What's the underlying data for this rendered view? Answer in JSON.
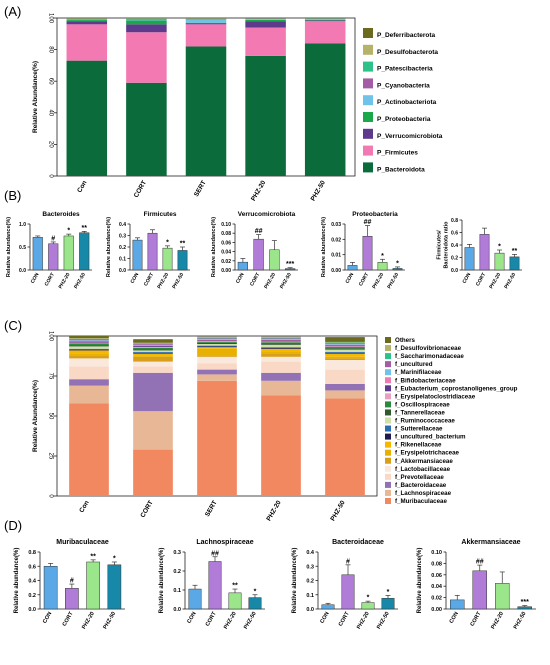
{
  "panel_labels": [
    "(A)",
    "(B)",
    "(C)",
    "(D)"
  ],
  "chart_data": [
    {
      "id": "A",
      "type": "bar",
      "stacked": true,
      "categories": [
        "Con",
        "CORT",
        "SERT",
        "PHZ-20",
        "PHZ-50"
      ],
      "ylabel": "Relative Abundance(%)",
      "xlabel": "",
      "ylim": [
        0,
        100
      ],
      "yticks": [
        "0",
        "20",
        "40",
        "60",
        "80",
        "100"
      ],
      "legend_position": "right",
      "series": [
        {
          "name": "P_Bacteroidota",
          "color": "#0b6b3a",
          "values": [
            73,
            59,
            82,
            76,
            84
          ]
        },
        {
          "name": "P_Firmicutes",
          "color": "#f279b2",
          "values": [
            23,
            32,
            14,
            18,
            14
          ]
        },
        {
          "name": "P_Verrucomicrobiota",
          "color": "#5e3a8c",
          "values": [
            2,
            5,
            0.5,
            4,
            0.5
          ]
        },
        {
          "name": "P_Proteobacteria",
          "color": "#1aa84a",
          "values": [
            0.7,
            2.5,
            0.5,
            0.8,
            0.4
          ]
        },
        {
          "name": "P_Actinobacteriota",
          "color": "#6fc3e8",
          "values": [
            0.3,
            0.5,
            2,
            0.5,
            0.4
          ]
        },
        {
          "name": "P_Cyanobacteria",
          "color": "#a35ca5",
          "values": [
            0.3,
            0.4,
            0.3,
            0.3,
            0.2
          ]
        },
        {
          "name": "P_Patescibacteria",
          "color": "#2ec28a",
          "values": [
            0.2,
            0.2,
            0.2,
            0.2,
            0.2
          ]
        },
        {
          "name": "P_Desulfobacterota",
          "color": "#b5b36a",
          "values": [
            0.2,
            0.2,
            0.2,
            0.1,
            0.1
          ]
        },
        {
          "name": "P_Deferribacterota",
          "color": "#6b6b1f",
          "values": [
            0.1,
            0.1,
            0.1,
            0.1,
            0.1
          ]
        }
      ]
    },
    {
      "id": "B1",
      "type": "bar",
      "title": "Bacteroides",
      "categories": [
        "CON",
        "CORT",
        "PHZ-20",
        "PHZ-50"
      ],
      "values": [
        0.71,
        0.57,
        0.74,
        0.81
      ],
      "errors": [
        0.03,
        0.04,
        0.04,
        0.03
      ],
      "annotations": [
        "",
        "#",
        "*",
        "**"
      ],
      "ylabel": "Relative abundance(%)",
      "ylim": [
        0,
        1.0
      ],
      "yticks": [
        "0.0",
        "0.5",
        "1.0"
      ]
    },
    {
      "id": "B2",
      "type": "bar",
      "title": "Firmicutes",
      "categories": [
        "CON",
        "CORT",
        "PHZ-20",
        "PHZ-50"
      ],
      "values": [
        0.26,
        0.32,
        0.19,
        0.17
      ],
      "errors": [
        0.02,
        0.03,
        0.02,
        0.03
      ],
      "annotations": [
        "",
        "",
        "*",
        "**"
      ],
      "ylabel": "Relative abundance(%)",
      "ylim": [
        0,
        0.4
      ],
      "yticks": [
        "0.0",
        "0.1",
        "0.2",
        "0.3",
        "0.4"
      ]
    },
    {
      "id": "B3",
      "type": "bar",
      "title": "Verrucomicrobiota",
      "categories": [
        "CON",
        "CORT",
        "PHZ-20",
        "PHZ-50"
      ],
      "values": [
        0.017,
        0.067,
        0.044,
        0.003
      ],
      "errors": [
        0.008,
        0.01,
        0.02,
        0.002
      ],
      "annotations": [
        "",
        "##",
        "",
        "***"
      ],
      "ylabel": "Relative abundance(%)",
      "ylim": [
        0,
        0.1
      ],
      "yticks": [
        "0.00",
        "0.02",
        "0.04",
        "0.06",
        "0.08",
        "0.10"
      ]
    },
    {
      "id": "B4",
      "type": "bar",
      "title": "Proteobacteria",
      "categories": [
        "CON",
        "CORT",
        "PHZ-20",
        "PHZ-50"
      ],
      "values": [
        0.003,
        0.022,
        0.005,
        0.001
      ],
      "errors": [
        0.002,
        0.007,
        0.002,
        0.001
      ],
      "annotations": [
        "",
        "##",
        "*",
        "*"
      ],
      "ylabel": "Relative abundance(%)",
      "ylim": [
        0,
        0.03
      ],
      "yticks": [
        "0.00",
        "0.01",
        "0.02",
        "0.03"
      ]
    },
    {
      "id": "B5",
      "type": "bar",
      "title": "",
      "categories": [
        "CON",
        "CORT",
        "PHZ-20",
        "PHZ-50"
      ],
      "values": [
        0.36,
        0.57,
        0.27,
        0.21
      ],
      "errors": [
        0.05,
        0.1,
        0.05,
        0.04
      ],
      "annotations": [
        "",
        "",
        "*",
        "**"
      ],
      "ylabel": "Firmicutes/ Bacteroidota ratio",
      "ylim": [
        0,
        0.8
      ],
      "yticks": [
        "0.0",
        "0.2",
        "0.4",
        "0.6",
        "0.8"
      ]
    },
    {
      "id": "C",
      "type": "bar",
      "stacked": true,
      "categories": [
        "Con",
        "CORT",
        "SERT",
        "PHZ-20",
        "PHZ-50"
      ],
      "ylabel": "Relative Abundance(%)",
      "ylim": [
        0,
        100
      ],
      "yticks": [
        "0",
        "25",
        "50",
        "75",
        "100"
      ],
      "legend_position": "right",
      "series": [
        {
          "name": "f_Muribaculaceae",
          "color": "#f28860",
          "values": [
            58,
            29,
            72,
            63,
            61
          ]
        },
        {
          "name": "f_Lachnospiraceae",
          "color": "#e8b896",
          "values": [
            11,
            24,
            4,
            9,
            5
          ]
        },
        {
          "name": "f_Bacteroidaceae",
          "color": "#9271b5",
          "values": [
            4,
            24,
            3,
            5,
            4
          ]
        },
        {
          "name": "f_Prevotellaceae",
          "color": "#f9d9c6",
          "values": [
            8,
            4,
            4,
            7,
            9
          ]
        },
        {
          "name": "f_Lactobacillaceae",
          "color": "#fbe8dc",
          "values": [
            5,
            3,
            4,
            3,
            6
          ]
        },
        {
          "name": "f_Akkermansiaceae",
          "color": "#d8a01a",
          "values": [
            2,
            3,
            1,
            2,
            1
          ]
        },
        {
          "name": "f_Erysipelotrichaceae",
          "color": "#e8b000",
          "values": [
            1,
            1,
            4,
            1,
            1
          ]
        },
        {
          "name": "f_Rikenellaceae",
          "color": "#f5b800",
          "values": [
            2,
            1,
            1,
            2,
            2
          ]
        },
        {
          "name": "f_uncultured_bacterium",
          "color": "#1d1a4f",
          "values": [
            0.5,
            0.5,
            0.5,
            0.5,
            0.5
          ]
        },
        {
          "name": "f_Sutterellaceae",
          "color": "#2a6fb5",
          "values": [
            0.5,
            0.5,
            0.5,
            0.5,
            0.5
          ]
        },
        {
          "name": "f_Ruminococcaceae",
          "color": "#cfe0a8",
          "values": [
            1.5,
            1,
            1,
            1.5,
            1.5
          ]
        },
        {
          "name": "f_Tannerellaceae",
          "color": "#2e5a2e",
          "values": [
            0.8,
            0.8,
            0.8,
            0.8,
            0.8
          ]
        },
        {
          "name": "f_Oscillospiraceae",
          "color": "#2b8a3e",
          "values": [
            1,
            0.8,
            0.6,
            0.8,
            0.8
          ]
        },
        {
          "name": "f_Erysipelatoclostridiaceae",
          "color": "#e8a0c0",
          "values": [
            0.6,
            0.5,
            0.4,
            0.5,
            0.5
          ]
        },
        {
          "name": "f_Eubacterium_coprostanoligenes_group",
          "color": "#5e3a8c",
          "values": [
            0.6,
            0.6,
            0.4,
            0.6,
            0.6
          ]
        },
        {
          "name": "f_Bifidobacteriaceae",
          "color": "#f279b2",
          "values": [
            0.4,
            0.4,
            0.4,
            0.4,
            0.4
          ]
        },
        {
          "name": "f_Marinifilaceae",
          "color": "#6fc3e8",
          "values": [
            0.4,
            0.4,
            0.4,
            0.4,
            0.4
          ]
        },
        {
          "name": "f_uncultured",
          "color": "#a35ca5",
          "values": [
            0.5,
            0.5,
            0.5,
            0.5,
            0.5
          ]
        },
        {
          "name": "f_Saccharimonadaceae",
          "color": "#2ec28a",
          "values": [
            0.4,
            0.4,
            0.4,
            0.4,
            0.4
          ]
        },
        {
          "name": "f_Desulfovibrionaceae",
          "color": "#b5b36a",
          "values": [
            0.4,
            0.4,
            0.4,
            0.4,
            0.4
          ]
        },
        {
          "name": "Others",
          "color": "#6b6b1f",
          "values": [
            1.4,
            2.2,
            0.2,
            0.2,
            3.0
          ]
        }
      ]
    },
    {
      "id": "D1",
      "type": "bar",
      "title": "Muribaculaceae",
      "categories": [
        "CON",
        "CORT",
        "PHZ-20",
        "PHZ-50"
      ],
      "values": [
        0.6,
        0.29,
        0.66,
        0.62
      ],
      "errors": [
        0.04,
        0.06,
        0.03,
        0.04
      ],
      "annotations": [
        "",
        "#",
        "**",
        "*"
      ],
      "ylabel": "Relative abundance(%)",
      "ylim": [
        0,
        0.8
      ],
      "yticks": [
        "0.0",
        "0.2",
        "0.4",
        "0.6",
        "0.8"
      ]
    },
    {
      "id": "D2",
      "type": "bar",
      "title": "Lachnospiraceae",
      "categories": [
        "CON",
        "CORT",
        "PHZ-20",
        "PHZ-50"
      ],
      "values": [
        0.105,
        0.25,
        0.085,
        0.06
      ],
      "errors": [
        0.02,
        0.025,
        0.02,
        0.015
      ],
      "annotations": [
        "",
        "##",
        "**",
        "*"
      ],
      "ylabel": "Relative abundance(%)",
      "ylim": [
        0,
        0.3
      ],
      "yticks": [
        "0.0",
        "0.1",
        "0.2",
        "0.3"
      ]
    },
    {
      "id": "D3",
      "type": "bar",
      "title": "Bacteroidaceae",
      "categories": [
        "CON",
        "CORT",
        "PHZ-20",
        "PHZ-50"
      ],
      "values": [
        0.03,
        0.24,
        0.045,
        0.075
      ],
      "errors": [
        0.01,
        0.07,
        0.01,
        0.02
      ],
      "annotations": [
        "",
        "#",
        "*",
        "*"
      ],
      "ylabel": "Relative abundance(%)",
      "ylim": [
        0,
        0.4
      ],
      "yticks": [
        "0.0",
        "0.1",
        "0.2",
        "0.3",
        "0.4"
      ]
    },
    {
      "id": "D4",
      "type": "bar",
      "title": "Akkermansiaceae",
      "categories": [
        "CON",
        "CORT",
        "PHZ-20",
        "PHZ-50"
      ],
      "values": [
        0.016,
        0.067,
        0.045,
        0.004
      ],
      "errors": [
        0.008,
        0.01,
        0.02,
        0.002
      ],
      "annotations": [
        "",
        "##",
        "",
        "***"
      ],
      "ylabel": "Relative abundance(%)",
      "ylim": [
        0,
        0.1
      ],
      "yticks": [
        "0.00",
        "0.02",
        "0.04",
        "0.06",
        "0.08",
        "0.10"
      ]
    }
  ],
  "small_bar_colors": [
    "#5aa9e6",
    "#b07cd8",
    "#9be58a",
    "#1788a8"
  ]
}
